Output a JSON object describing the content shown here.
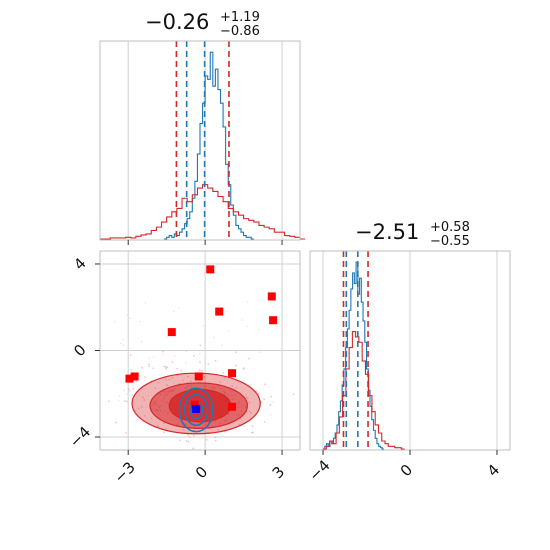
{
  "chart_data": [
    {
      "type": "histogram",
      "panel": "top-left",
      "title": {
        "value": "−0.26",
        "plus": "+1.19",
        "minus": "−0.86"
      },
      "xlim": [
        -4.1,
        3.7
      ],
      "xticks": [
        -3,
        0,
        3
      ],
      "grid": true,
      "series": [
        {
          "name": "",
          "color": "#1f77b4",
          "step": "hist",
          "bin_edges_start": -1.6,
          "bin_width": 0.1,
          "heights": [
            0,
            0.5,
            1,
            0.5,
            1.5,
            1,
            2,
            3,
            4.5,
            6,
            8,
            12,
            17,
            25,
            34,
            40,
            48,
            47,
            55,
            45,
            50,
            44,
            40,
            33,
            22,
            16,
            10,
            7,
            4,
            3,
            2,
            1,
            0.5,
            0.5,
            0
          ]
        },
        {
          "name": "",
          "color": "#d62728",
          "step": "hist",
          "bin_edges_start": -4.1,
          "bin_width": 0.2,
          "heights": [
            0,
            0,
            0.3,
            0.3,
            0.3,
            0.5,
            0.3,
            0.8,
            1.2,
            1.5,
            2.5,
            3.5,
            5,
            6.5,
            8,
            9,
            12,
            11,
            13,
            15,
            16,
            15,
            14,
            12.5,
            11,
            9,
            8,
            7,
            6,
            5.5,
            5,
            4,
            3.5,
            3,
            2,
            2,
            1,
            0.8,
            0.5,
            0
          ]
        }
      ],
      "vlines": [
        {
          "x": -1.12,
          "color": "#d62728",
          "style": "dashed"
        },
        {
          "x": -0.72,
          "color": "#1f77b4",
          "style": "dashed"
        },
        {
          "x": -0.02,
          "color": "#1f77b4",
          "style": "dashed"
        },
        {
          "x": 0.93,
          "color": "#d62728",
          "style": "dashed"
        }
      ]
    },
    {
      "type": "scatter",
      "panel": "bottom-left",
      "xlim": [
        -4.1,
        3.7
      ],
      "ylim": [
        -4.6,
        4.6
      ],
      "xticks": [
        -3,
        0,
        3
      ],
      "yticks": [
        -4,
        0,
        4
      ],
      "grid": true,
      "red_markers": [
        [
          0.2,
          3.75
        ],
        [
          2.6,
          2.5
        ],
        [
          0.55,
          1.8
        ],
        [
          -1.3,
          0.85
        ],
        [
          2.65,
          1.4
        ],
        [
          -0.25,
          -1.2
        ],
        [
          1.05,
          -1.05
        ],
        [
          -2.75,
          -1.2
        ],
        [
          -2.95,
          -1.3
        ],
        [
          -0.4,
          -2.5
        ],
        [
          1.05,
          -2.6
        ]
      ],
      "blue_marker": [
        -0.35,
        -2.7
      ],
      "red_contours": [
        {
          "cx": -0.35,
          "cy": -2.45,
          "rx": 2.5,
          "ry": 1.4,
          "opacity": 0.35
        },
        {
          "cx": -0.25,
          "cy": -2.55,
          "rx": 1.9,
          "ry": 1.05,
          "opacity": 0.55
        },
        {
          "cx": -0.2,
          "cy": -2.55,
          "rx": 1.2,
          "ry": 0.75,
          "opacity": 0.85
        }
      ],
      "blue_contours": [
        {
          "cx": -0.35,
          "cy": -2.75,
          "rx": 0.65,
          "ry": 1.0
        },
        {
          "cx": -0.35,
          "cy": -2.75,
          "rx": 0.45,
          "ry": 0.7
        },
        {
          "cx": -0.35,
          "cy": -2.75,
          "rx": 0.25,
          "ry": 0.4
        }
      ]
    },
    {
      "type": "histogram",
      "panel": "bottom-right",
      "title": {
        "value": "−2.51",
        "plus": "+0.58",
        "minus": "−0.55"
      },
      "xlim": [
        -4.6,
        4.6
      ],
      "xticks": [
        -4,
        0,
        4
      ],
      "grid": true,
      "series": [
        {
          "name": "",
          "color": "#1f77b4",
          "step": "hist",
          "bin_edges_start": -4.0,
          "bin_width": 0.08,
          "heights": [
            0,
            1,
            2,
            1,
            3,
            2,
            4,
            6,
            9,
            14,
            18,
            24,
            30,
            38,
            45,
            52,
            60,
            66,
            62,
            70,
            58,
            64,
            55,
            48,
            40,
            30,
            22,
            16,
            11,
            7,
            4,
            2,
            1,
            0.5,
            0
          ]
        },
        {
          "name": "",
          "color": "#d62728",
          "step": "hist",
          "bin_edges_start": -4.0,
          "bin_width": 0.15,
          "heights": [
            0,
            1,
            3,
            2,
            6,
            12,
            20,
            30,
            38,
            44,
            42,
            40,
            33,
            28,
            20,
            14,
            9,
            6,
            3,
            2,
            1,
            1,
            0.5,
            0.5,
            0
          ]
        }
      ],
      "vlines": [
        {
          "x": -3.06,
          "color": "#d62728",
          "style": "dashed"
        },
        {
          "x": -2.93,
          "color": "#1f77b4",
          "style": "dashed"
        },
        {
          "x": -2.4,
          "color": "#1f77b4",
          "style": "dashed"
        },
        {
          "x": -1.93,
          "color": "#d62728",
          "style": "dashed"
        }
      ]
    }
  ]
}
